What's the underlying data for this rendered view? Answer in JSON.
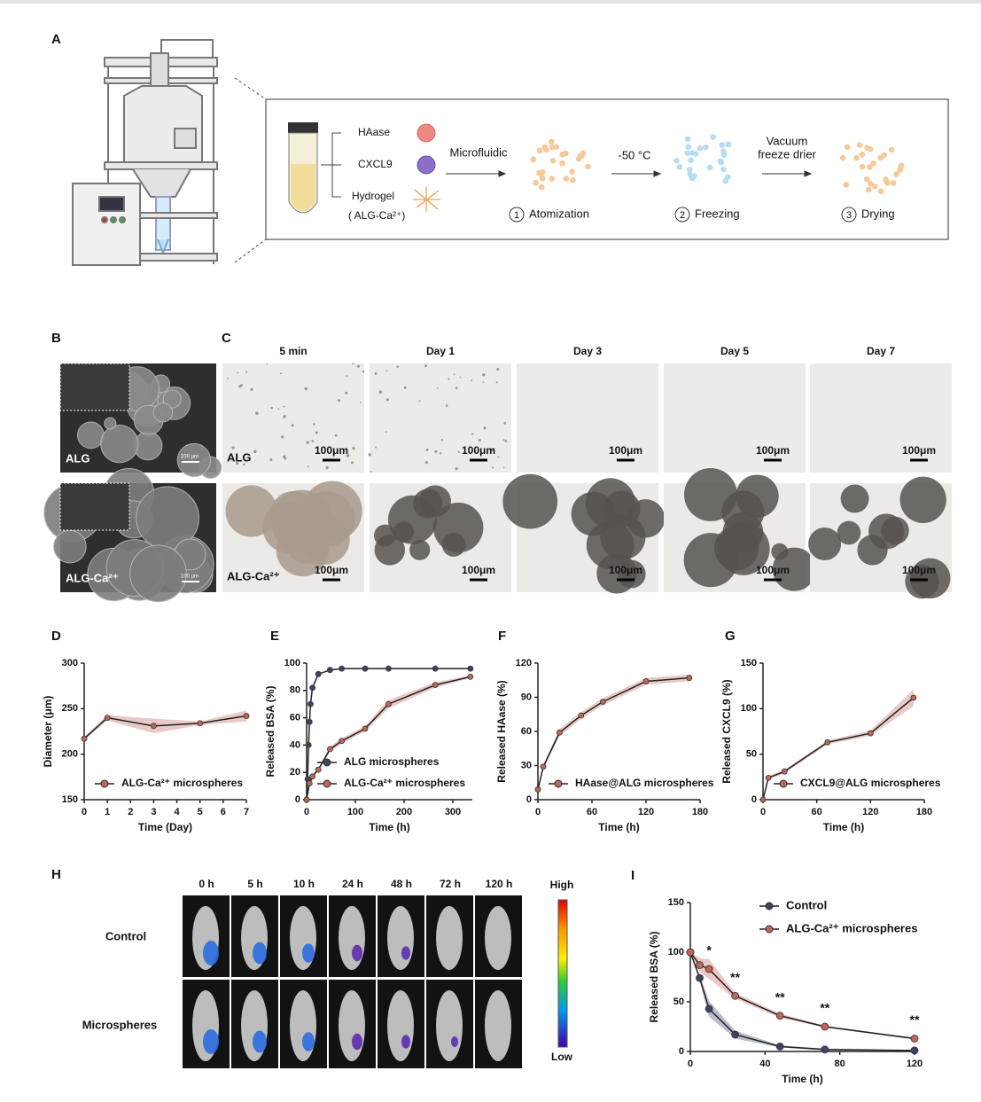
{
  "panels": [
    "A",
    "B",
    "C",
    "D",
    "E",
    "F",
    "G",
    "H",
    "I"
  ],
  "schematic": {
    "components": [
      "HAase",
      "CXCL9",
      "Hydrogel"
    ],
    "hydrogel_note": "( ALG-Ca²⁺)",
    "arrow_labels": [
      [
        "Microfluidic"
      ],
      [
        "-50 °C"
      ],
      [
        "Vacuum",
        "freeze drier"
      ]
    ],
    "steps": [
      {
        "number": "1",
        "label": "Atomization"
      },
      {
        "number": "2",
        "label": "Freezing"
      },
      {
        "number": "3",
        "label": "Drying"
      }
    ]
  },
  "micrographs": {
    "rows": [
      "ALG",
      "ALG-Ca²⁺"
    ],
    "sem_scale": "100 μm",
    "columns": [
      "5 min",
      "Day 1",
      "Day 3",
      "Day 5",
      "Day 7"
    ],
    "optical_scale": "100μm"
  },
  "imaging": {
    "times": [
      "0 h",
      "5 h",
      "10 h",
      "24 h",
      "48 h",
      "72 h",
      "120 h"
    ],
    "rows": [
      "Control",
      "Microspheres"
    ],
    "colorbar": {
      "high": "High",
      "low": "Low"
    }
  },
  "chart_data": [
    {
      "type": "line",
      "xlabel": "Time (Day)",
      "ylabel": "Diameter (μm)",
      "xlim": [
        0,
        7
      ],
      "xticks": [
        0,
        1,
        2,
        3,
        4,
        5,
        6,
        7
      ],
      "ylim": [
        150,
        300
      ],
      "yticks": [
        150,
        200,
        250,
        300
      ],
      "legend": "lower left",
      "series": [
        {
          "name": "ALG-Ca²⁺ microspheres",
          "color": "#c0655a",
          "x": [
            0,
            1,
            3,
            5,
            7
          ],
          "values": [
            217,
            240,
            231,
            234,
            242
          ],
          "errors": [
            2,
            3,
            8,
            2,
            6
          ]
        }
      ]
    },
    {
      "type": "line",
      "xlabel": "Time (h)",
      "ylabel": "Released BSA (%)",
      "xlim": [
        0,
        340
      ],
      "xticks": [
        0,
        100,
        200,
        300
      ],
      "ylim": [
        0,
        100
      ],
      "yticks": [
        0,
        20,
        40,
        60,
        80,
        100
      ],
      "legend": "lower left",
      "series": [
        {
          "name": "ALG microspheres",
          "color": "#3b4560",
          "x": [
            0,
            2,
            4,
            6,
            8,
            12,
            24,
            48,
            72,
            120,
            168,
            264,
            336
          ],
          "values": [
            0,
            15,
            40,
            57,
            70,
            82,
            92,
            95,
            96,
            96,
            96,
            96,
            96
          ]
        },
        {
          "name": "ALG-Ca²⁺ microspheres",
          "color": "#c0655a",
          "x": [
            0,
            6,
            12,
            24,
            48,
            72,
            120,
            168,
            264,
            336
          ],
          "values": [
            0,
            12,
            17,
            22,
            37,
            43,
            52,
            70,
            84,
            90
          ],
          "errors": [
            0,
            1,
            1,
            1,
            2,
            2,
            2,
            3,
            2,
            1
          ]
        }
      ]
    },
    {
      "type": "line",
      "xlabel": "Time (h)",
      "ylabel": "Released HAase (%)",
      "xlim": [
        0,
        180
      ],
      "xticks": [
        0,
        60,
        120,
        180
      ],
      "ylim": [
        0,
        120
      ],
      "yticks": [
        0,
        30,
        60,
        90,
        120
      ],
      "legend": "lower left",
      "series": [
        {
          "name": "HAase@ALG microspheres",
          "color": "#c0655a",
          "x": [
            0,
            6,
            24,
            48,
            72,
            120,
            168
          ],
          "values": [
            9,
            29,
            59,
            74,
            86,
            104,
            107
          ],
          "errors": [
            1,
            2,
            3,
            3,
            3,
            3,
            3
          ]
        }
      ]
    },
    {
      "type": "line",
      "xlabel": "Time (h)",
      "ylabel": "Released CXCL9 (%)",
      "xlim": [
        0,
        180
      ],
      "xticks": [
        0,
        60,
        120,
        180
      ],
      "ylim": [
        0,
        150
      ],
      "yticks": [
        0,
        50,
        100,
        150
      ],
      "legend": "lower left",
      "series": [
        {
          "name": "CXCL9@ALG microspheres",
          "color": "#c0655a",
          "x": [
            0,
            6,
            24,
            72,
            120,
            168
          ],
          "values": [
            0,
            24,
            31,
            63,
            73,
            112
          ],
          "errors": [
            0,
            2,
            2,
            2,
            3,
            9
          ]
        }
      ]
    },
    {
      "type": "line",
      "xlabel": "Time (h)",
      "ylabel": "Released BSA (%)",
      "xlim": [
        0,
        120
      ],
      "xticks": [
        0,
        40,
        80,
        120
      ],
      "ylim": [
        0,
        150
      ],
      "yticks": [
        0,
        50,
        100,
        150
      ],
      "legend": "upper right",
      "series": [
        {
          "name": "Control",
          "color": "#3b4560",
          "x": [
            0,
            5,
            10,
            24,
            48,
            72,
            120
          ],
          "values": [
            100,
            74,
            43,
            17,
            5,
            2,
            1
          ],
          "errors": [
            0,
            3,
            8,
            4,
            1,
            1,
            0
          ]
        },
        {
          "name": "ALG-Ca²⁺ microspheres",
          "color": "#c0655a",
          "x": [
            0,
            5,
            10,
            24,
            48,
            72,
            120
          ],
          "values": [
            100,
            87,
            83,
            56,
            36,
            25,
            13
          ],
          "errors": [
            0,
            7,
            10,
            3,
            2,
            1,
            1
          ]
        }
      ],
      "annotations": [
        {
          "x": 10,
          "text": "*"
        },
        {
          "x": 24,
          "text": "**"
        },
        {
          "x": 48,
          "text": "**"
        },
        {
          "x": 72,
          "text": "**"
        },
        {
          "x": 120,
          "text": "**"
        }
      ]
    }
  ]
}
